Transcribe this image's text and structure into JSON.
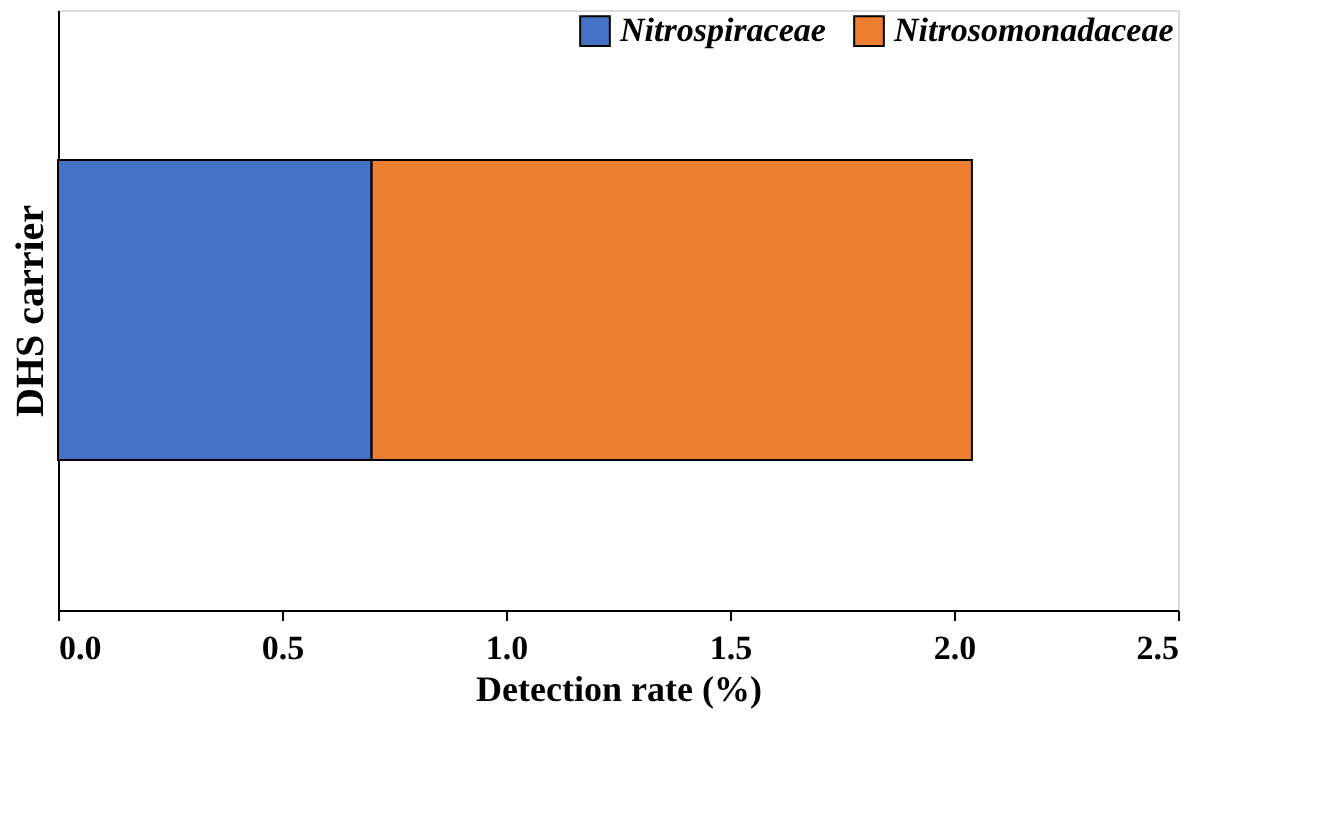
{
  "chart_data": {
    "type": "bar",
    "orientation": "horizontal",
    "stacked": true,
    "categories": [
      null
    ],
    "series": [
      {
        "name": "Nitrospiraceae",
        "color": "#4472c4",
        "values": [
          0.7
        ]
      },
      {
        "name": "Nitrosomonadaceae",
        "color": "#ed7d31",
        "values": [
          1.34
        ]
      }
    ],
    "xlabel": "Detection rate (%)",
    "ylabel": "DHS carrier",
    "xlim": [
      0,
      2.5
    ],
    "xticks": [
      {
        "value": 0,
        "label": "0.0"
      },
      0.5,
      {
        "value": 1,
        "label": "1.0"
      },
      1.5,
      {
        "value": 2,
        "label": "2.0"
      },
      2.5
    ],
    "grid": false,
    "legend": "top right",
    "tick_labels": "x"
  }
}
